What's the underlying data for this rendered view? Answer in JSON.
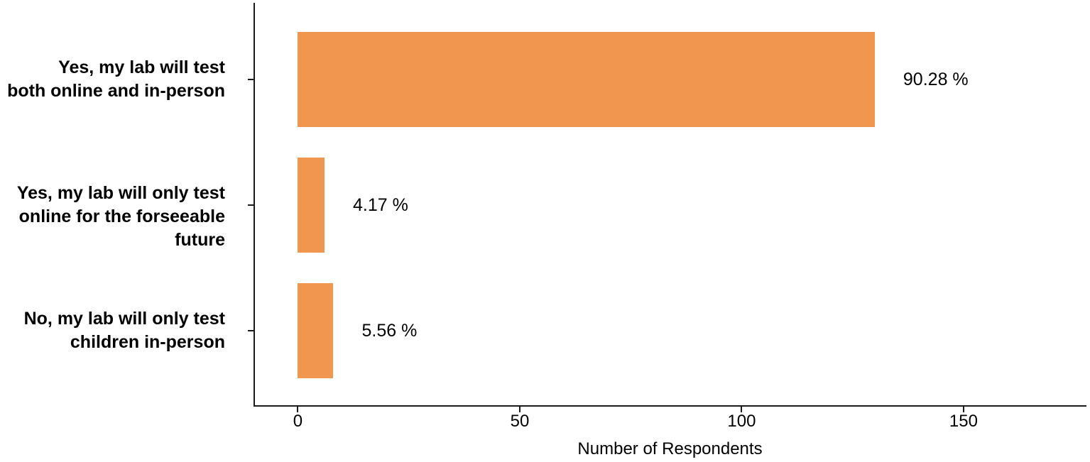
{
  "chart_data": {
    "type": "bar",
    "orientation": "horizontal",
    "title": "",
    "categories": [
      "Yes, my lab will test\nboth online and in-person",
      "Yes, my lab will only test\nonline for the forseeable future",
      "No, my lab will only test\nchildren in-person"
    ],
    "values": [
      130,
      6,
      8
    ],
    "value_labels": [
      "90.28 %",
      "4.17 %",
      "5.56 %"
    ],
    "xlabel": "Number of Respondents",
    "ylabel": "",
    "xticks": [
      0,
      50,
      100,
      150
    ],
    "xlim": [
      -10,
      177.7
    ],
    "grid": false,
    "legend": false,
    "bar_color": "#F0964E",
    "axis_color": "#1A1A1A",
    "text_color": "#000000",
    "background_color": "#FFFFFF"
  }
}
